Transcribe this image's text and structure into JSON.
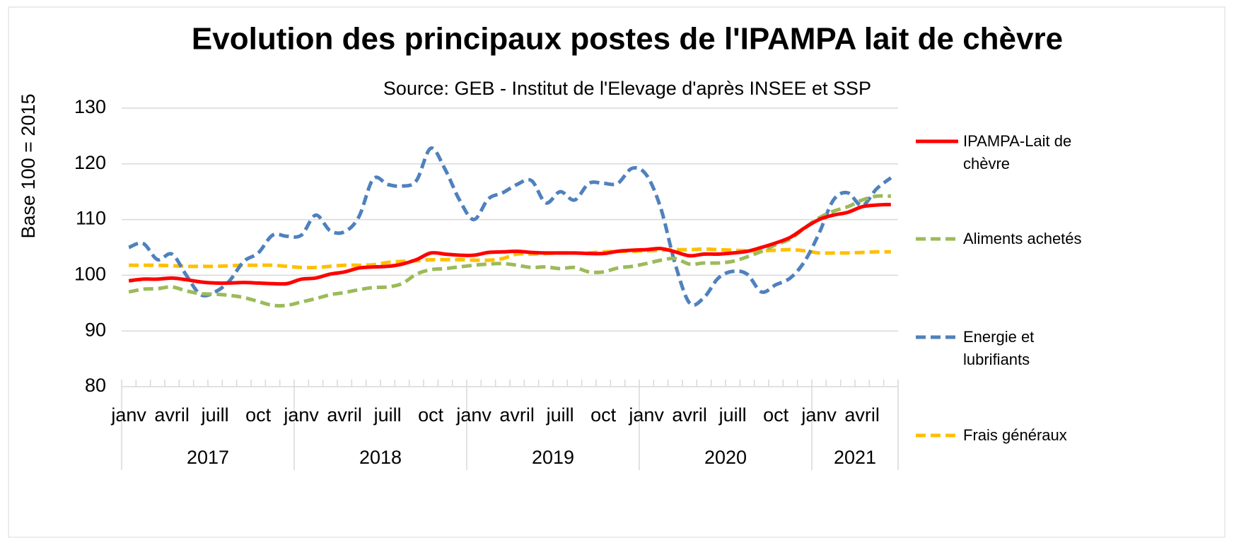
{
  "chart_data": {
    "type": "line",
    "title": "Evolution des principaux postes de l'IPAMPA lait de chèvre",
    "subtitle": "Source: GEB - Institut de l'Elevage d'après INSEE et SSP",
    "y_label": "Base 100 = 2015",
    "categories": [
      "janv",
      null,
      null,
      "avril",
      null,
      null,
      "juill",
      null,
      null,
      "oct",
      null,
      null,
      "janv",
      null,
      null,
      "avril",
      null,
      null,
      "juill",
      null,
      null,
      "oct",
      null,
      null,
      "janv",
      null,
      null,
      "avril",
      null,
      null,
      "juill",
      null,
      null,
      "oct",
      null,
      null,
      "janv",
      null,
      null,
      "avril",
      null,
      null,
      "juill",
      null,
      null,
      "oct",
      null,
      null,
      "janv",
      null,
      null,
      "avril",
      null,
      null
    ],
    "years": [
      "2017",
      "2018",
      "2019",
      "2020",
      "2021"
    ],
    "ylim": [
      80,
      130
    ],
    "yticks": [
      80,
      90,
      100,
      110,
      120,
      130
    ],
    "grid": true,
    "series": [
      {
        "name": "IPAMPA-Lait de chèvre",
        "color": "#ff0000",
        "dash": false,
        "values": [
          99,
          99.3,
          99.3,
          99.5,
          99.2,
          98.8,
          98.6,
          98.6,
          98.7,
          98.6,
          98.5,
          98.5,
          99.3,
          99.5,
          100.2,
          100.6,
          101.3,
          101.5,
          101.6,
          102,
          102.8,
          104,
          103.8,
          103.6,
          103.6,
          104.1,
          104.2,
          104.3,
          104.1,
          104,
          104,
          104,
          103.9,
          103.9,
          104.3,
          104.5,
          104.6,
          104.8,
          104.2,
          103.5,
          103.8,
          103.8,
          104,
          104.3,
          105,
          105.8,
          106.8,
          108.5,
          110,
          110.8,
          111.3,
          112.3,
          112.6,
          112.7
        ]
      },
      {
        "name": "Aliments achetés",
        "color": "#9bbb59",
        "dash": true,
        "values": [
          97,
          97.5,
          97.6,
          97.9,
          97.2,
          96.7,
          96.6,
          96.4,
          96,
          95.3,
          94.6,
          94.6,
          95.2,
          95.8,
          96.5,
          96.9,
          97.4,
          97.8,
          97.9,
          98.5,
          100.2,
          101,
          101.2,
          101.5,
          101.8,
          102,
          102.1,
          101.8,
          101.4,
          101.5,
          101.2,
          101.4,
          100.6,
          100.6,
          101.3,
          101.6,
          102.1,
          102.7,
          103,
          102,
          102.2,
          102.2,
          102.5,
          103.3,
          104.3,
          105.5,
          106.5,
          108.5,
          110.3,
          111.5,
          112.3,
          113.5,
          114.2,
          114.2
        ]
      },
      {
        "name": "Energie et lubrifiants",
        "color": "#4f81bd",
        "dash": true,
        "values": [
          105,
          105.7,
          102.8,
          103.8,
          100,
          96.5,
          97,
          99,
          102.5,
          104,
          107.2,
          107,
          107.2,
          110.8,
          108,
          107.8,
          110.5,
          117.3,
          116.3,
          116,
          117,
          122.8,
          119,
          113.5,
          110,
          113.7,
          114.8,
          116.3,
          117,
          113,
          115,
          113.5,
          116.5,
          116.5,
          116.5,
          119.2,
          118,
          112,
          102,
          95,
          96,
          99.5,
          100.7,
          100.2,
          97,
          98.3,
          99.5,
          102.5,
          107.5,
          113.5,
          114.8,
          112.5,
          115.5,
          117.5
        ]
      },
      {
        "name": "Frais généraux",
        "color": "#ffc000",
        "dash": true,
        "values": [
          101.8,
          101.8,
          101.8,
          101.7,
          101.6,
          101.6,
          101.6,
          101.7,
          101.8,
          101.8,
          101.8,
          101.6,
          101.4,
          101.4,
          101.6,
          101.8,
          101.8,
          101.9,
          102.3,
          102.5,
          102.6,
          102.8,
          102.8,
          102.8,
          102.7,
          102.7,
          103,
          103.8,
          103.8,
          103.9,
          104,
          104,
          104,
          104.2,
          104.3,
          104.3,
          104.4,
          104.5,
          104.6,
          104.6,
          104.7,
          104.6,
          104.5,
          104.4,
          104.4,
          104.5,
          104.6,
          104.4,
          104,
          104,
          104,
          104.1,
          104.2,
          104.2
        ]
      }
    ]
  }
}
